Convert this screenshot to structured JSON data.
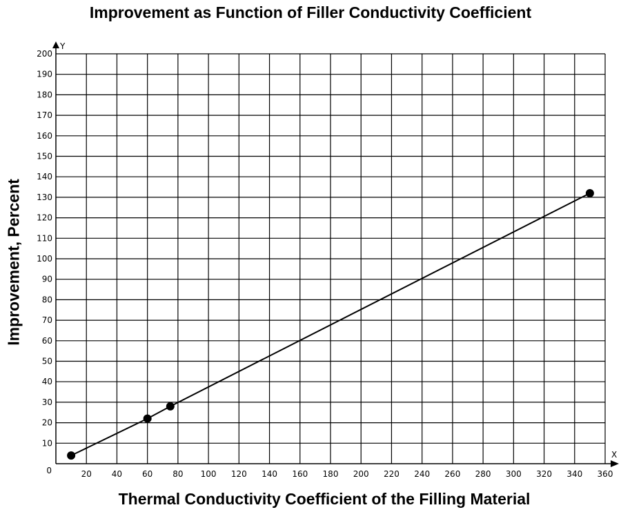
{
  "chart_data": {
    "type": "line",
    "title": "Improvement as Function of Filler Conductivity Coefficient",
    "xlabel": "Thermal Conductivity Coefficient of the Filling Material",
    "ylabel": "Improvement, Percent",
    "x_axis_letter": "X",
    "y_axis_letter": "Y",
    "origin_label": "0",
    "xlim": [
      0,
      360
    ],
    "ylim": [
      0,
      200
    ],
    "x_ticks": [
      20,
      40,
      60,
      80,
      100,
      120,
      140,
      160,
      180,
      200,
      220,
      240,
      260,
      280,
      300,
      320,
      340,
      360
    ],
    "y_ticks": [
      10,
      20,
      30,
      40,
      50,
      60,
      70,
      80,
      90,
      100,
      110,
      120,
      130,
      140,
      150,
      160,
      170,
      180,
      190,
      200
    ],
    "grid": true,
    "legend": "none",
    "series": [
      {
        "points": [
          {
            "x": 10,
            "y": 4
          },
          {
            "x": 60,
            "y": 22
          },
          {
            "x": 75,
            "y": 28
          },
          {
            "x": 350,
            "y": 132
          }
        ],
        "color": "#000000"
      }
    ]
  }
}
